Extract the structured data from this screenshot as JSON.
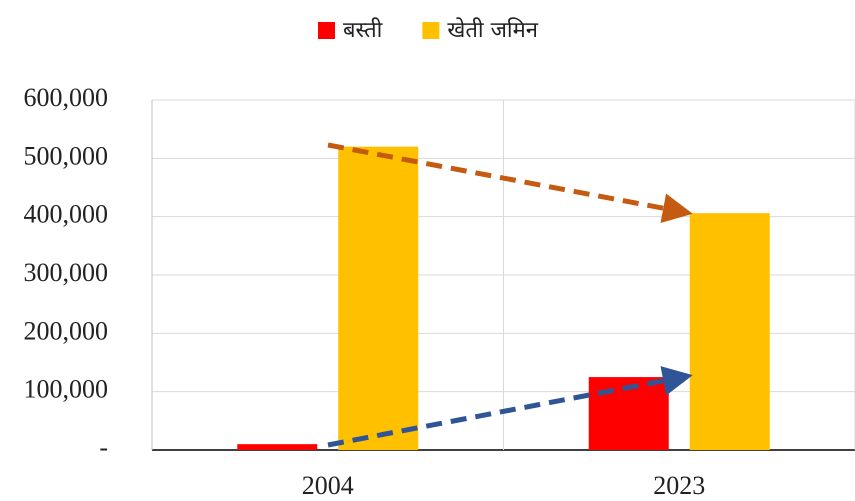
{
  "chart_data": {
    "type": "bar",
    "categories": [
      "2004",
      "2023"
    ],
    "series": [
      {
        "name": "बस्ती",
        "color": "#ff0000",
        "values": [
          10000,
          125000
        ]
      },
      {
        "name": "खेती जमिन",
        "color": "#ffc000",
        "values": [
          520000,
          406000
        ]
      }
    ],
    "ylim": [
      0,
      600000
    ],
    "yticks": [
      {
        "value": 0,
        "label": "-"
      },
      {
        "value": 100000,
        "label": "100,000"
      },
      {
        "value": 200000,
        "label": "200,000"
      },
      {
        "value": 300000,
        "label": "300,000"
      },
      {
        "value": 400000,
        "label": "400,000"
      },
      {
        "value": 500000,
        "label": "500,000"
      },
      {
        "value": 600000,
        "label": "600,000"
      }
    ],
    "grid": true,
    "legend": "top"
  }
}
